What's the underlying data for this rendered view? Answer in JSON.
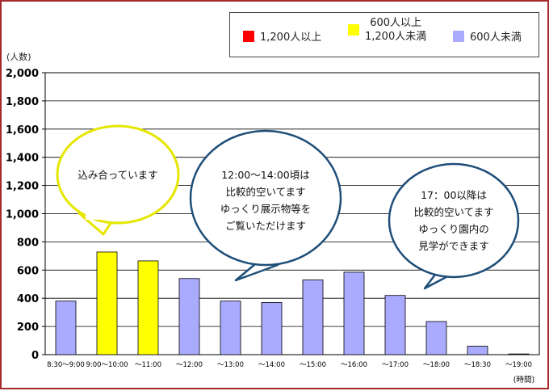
{
  "chart_data": {
    "type": "bar",
    "title": "",
    "xlabel": "(時間)",
    "ylabel": "(人数)",
    "ylim": [
      0,
      2000
    ],
    "yticks": [
      0,
      200,
      400,
      600,
      800,
      1000,
      1200,
      1400,
      1600,
      1800,
      2000
    ],
    "ytick_labels": [
      "0",
      "200",
      "400",
      "600",
      "800",
      "1,000",
      "1,200",
      "1,400",
      "1,600",
      "1,800",
      "2,000"
    ],
    "grid": true,
    "legend_position": "top-right",
    "categories": [
      "8:30～9:00",
      "9:00～10:00",
      "～11:00",
      "～12:00",
      "～13:00",
      "～14:00",
      "～15:00",
      "～16:00",
      "～17:00",
      "～18:00",
      "～18:30",
      "～19:00"
    ],
    "values": [
      380,
      728,
      665,
      540,
      380,
      370,
      530,
      585,
      420,
      235,
      60,
      5
    ],
    "bar_colors": [
      "#aaaaff",
      "#ffff00",
      "#ffff00",
      "#aaaaff",
      "#aaaaff",
      "#aaaaff",
      "#aaaaff",
      "#aaaaff",
      "#aaaaff",
      "#aaaaff",
      "#aaaaff",
      "#aaaaff"
    ],
    "legend": [
      {
        "label": "1,200人以上",
        "color": "#ff0000"
      },
      {
        "label": "600人以上\n1,200人未満",
        "color": "#ffff00"
      },
      {
        "label": "600人未満",
        "color": "#aaaaff"
      }
    ],
    "annotations": [
      {
        "text": "込み合っています",
        "border_color": "#e6e600"
      },
      {
        "text": "12:00～14:00頃は\n比較的空いてます\nゆっくり展示物等を\nご覧いただけます",
        "border_color": "#1f4e79"
      },
      {
        "text": "17：00以降は\n比較的空いてます\nゆっくり園内の\n見学ができます",
        "border_color": "#1f4e79"
      }
    ]
  },
  "legend_ui": {
    "item1": "1,200人以上",
    "item2_line1": "600人以上",
    "item2_line2": "1,200人未満",
    "item3": "600人未満"
  },
  "ui": {
    "unit_label": "(人数)",
    "time_label": "(時間)",
    "bubble1": "込み合っています",
    "bubble2_l1": "12:00～14:00頃は",
    "bubble2_l2": "比較的空いてます",
    "bubble2_l3": "ゆっくり展示物等を",
    "bubble2_l4": "ご覧いただけます",
    "bubble3_l1": "17：00以降は",
    "bubble3_l2": "比較的空いてます",
    "bubble3_l3": "ゆっくり園内の",
    "bubble3_l4": "見学ができます"
  }
}
